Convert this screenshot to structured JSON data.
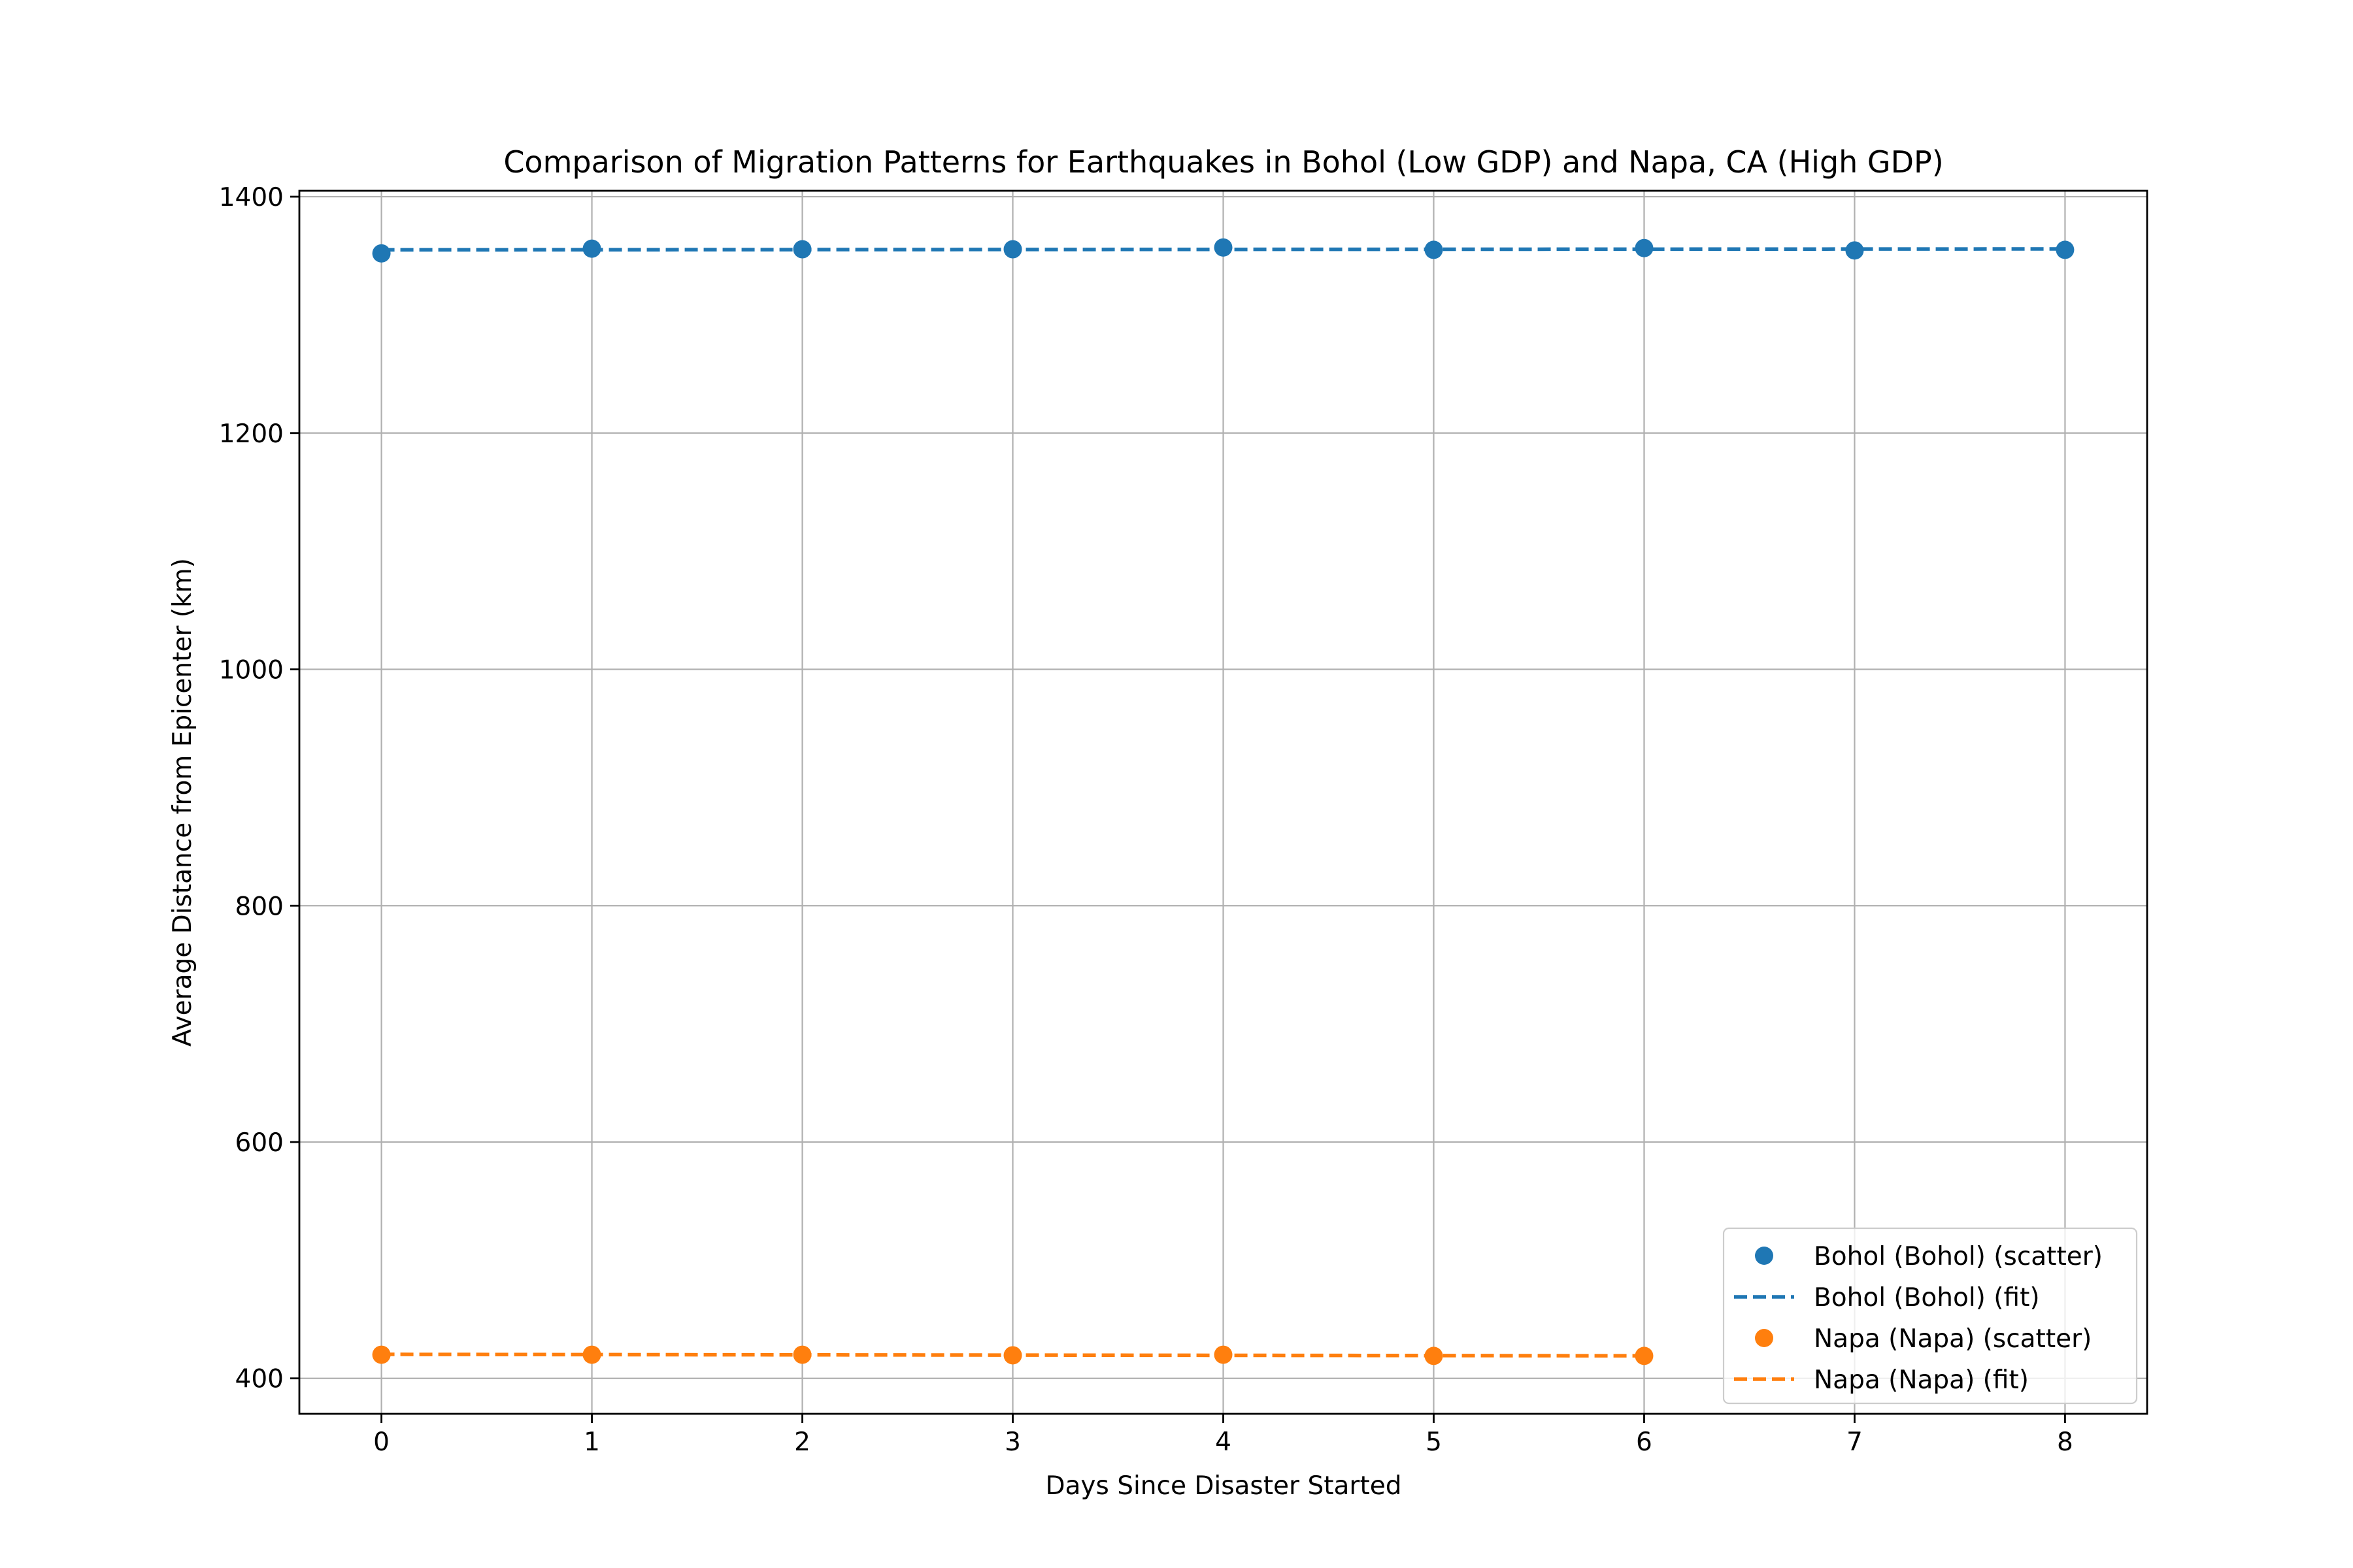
{
  "chart_data": {
    "type": "scatter",
    "title": "Comparison of Migration Patterns for Earthquakes in Bohol (Low GDP) and Napa, CA (High GDP)",
    "xlabel": "Days Since Disaster Started",
    "ylabel": "Average Distance from Epicenter (km)",
    "xlim": [
      -0.39,
      8.39
    ],
    "ylim": [
      370,
      1405
    ],
    "x_ticks": [
      0,
      1,
      2,
      3,
      4,
      5,
      6,
      7,
      8
    ],
    "x_tick_labels": [
      "0",
      "1",
      "2",
      "3",
      "4",
      "5",
      "6",
      "7",
      "8"
    ],
    "y_ticks": [
      400,
      600,
      800,
      1000,
      1200,
      1400
    ],
    "y_tick_labels": [
      "400",
      "600",
      "800",
      "1000",
      "1200",
      "1400"
    ],
    "grid": true,
    "legend_position": "lower right",
    "series": [
      {
        "name": "Bohol (Bohol) (scatter)",
        "kind": "scatter",
        "color": "#1f77b4",
        "x": [
          0,
          1,
          2,
          3,
          4,
          5,
          6,
          7,
          8
        ],
        "y": [
          1352,
          1356,
          1355.5,
          1355.5,
          1357,
          1355,
          1356.5,
          1354.5,
          1355
        ]
      },
      {
        "name": "Bohol (Bohol) (fit)",
        "kind": "line",
        "style": "dashed",
        "color": "#1f77b4",
        "x": [
          0,
          1,
          2,
          3,
          4,
          5,
          6,
          7,
          8
        ],
        "y": [
          1355,
          1355.1,
          1355.2,
          1355.3,
          1355.4,
          1355.5,
          1355.6,
          1355.7,
          1355.8
        ]
      },
      {
        "name": "Napa (Napa) (scatter)",
        "kind": "scatter",
        "color": "#ff7f0e",
        "x": [
          0,
          1,
          2,
          3,
          4,
          5,
          6
        ],
        "y": [
          420,
          420,
          420,
          419.5,
          420,
          419,
          419
        ]
      },
      {
        "name": "Napa (Napa) (fit)",
        "kind": "line",
        "style": "dashed",
        "color": "#ff7f0e",
        "x": [
          0,
          1,
          2,
          3,
          4,
          5,
          6
        ],
        "y": [
          420.3,
          420.1,
          419.9,
          419.7,
          419.5,
          419.3,
          419.1
        ]
      }
    ]
  }
}
